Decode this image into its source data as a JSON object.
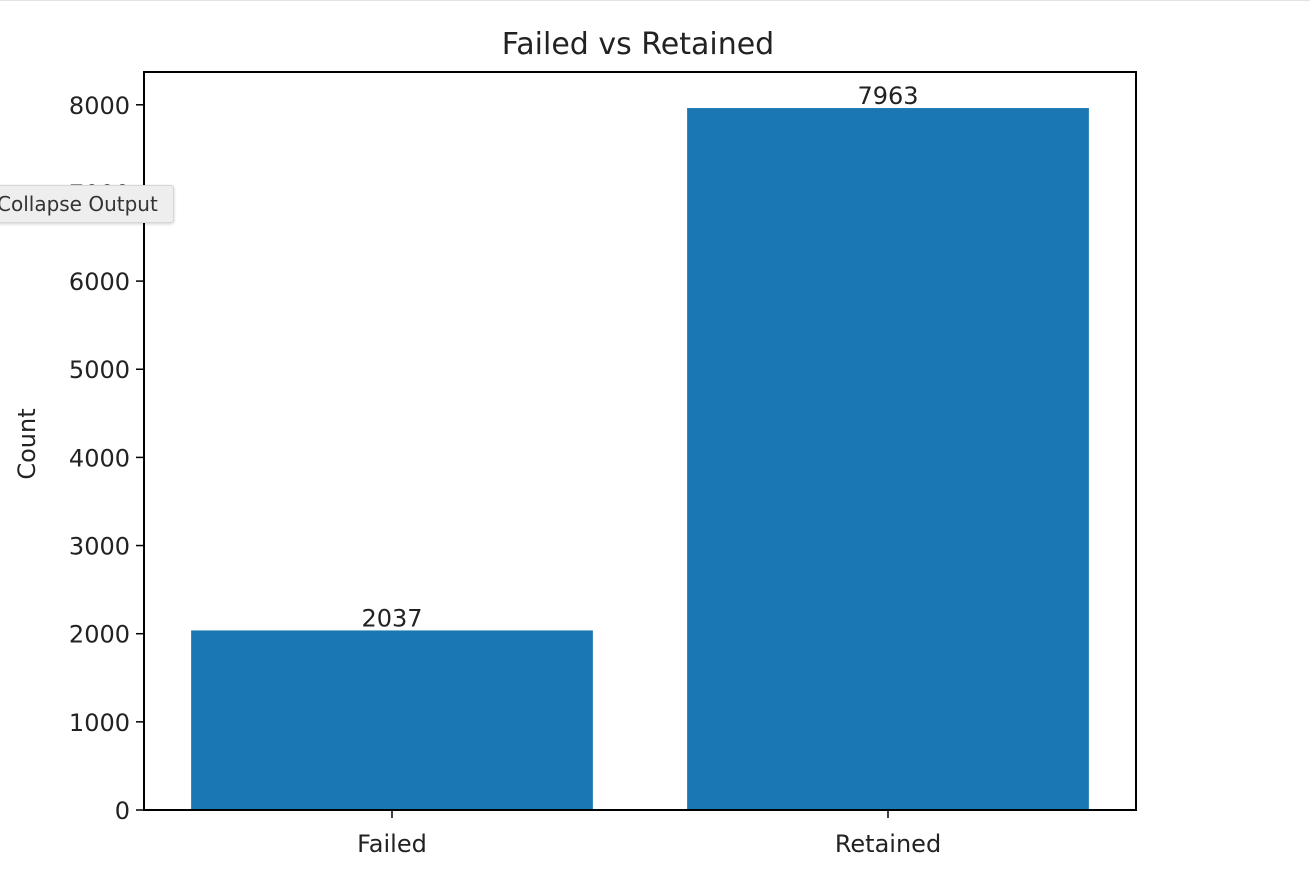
{
  "output_tooltip": {
    "label": "Collapse Output"
  },
  "colors": {
    "bar": "#1a77b3",
    "axis": "#000000",
    "text": "#222222",
    "background": "#ffffff"
  },
  "chart_data": {
    "type": "bar",
    "title": "Failed vs Retained",
    "xlabel": "",
    "ylabel": "Count",
    "categories": [
      "Failed",
      "Retained"
    ],
    "values": [
      2037,
      7963
    ],
    "data_labels": [
      "2037",
      "7963"
    ],
    "ylim": [
      0,
      8372
    ],
    "yticks": [
      0,
      1000,
      2000,
      3000,
      4000,
      5000,
      6000,
      7000,
      8000
    ],
    "grid": false,
    "legend": "none"
  }
}
